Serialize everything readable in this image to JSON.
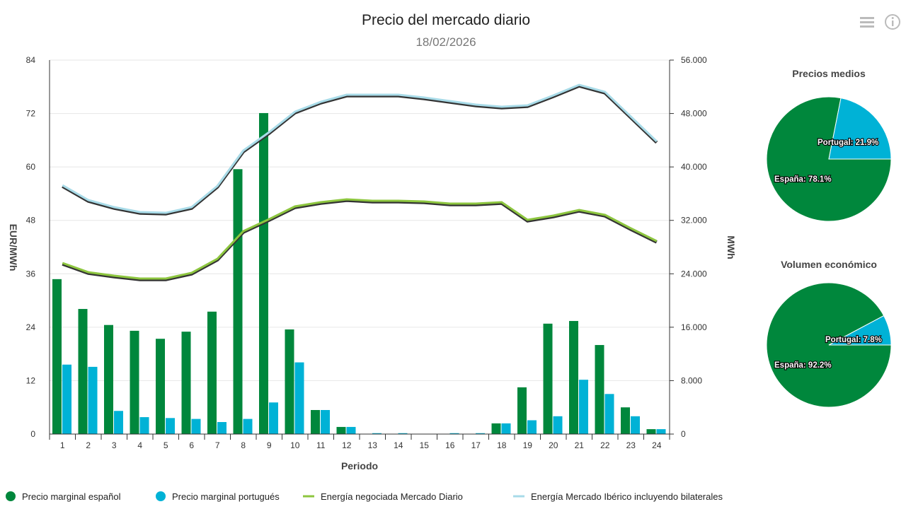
{
  "title": "Precio del mercado diario",
  "subtitle": "18/02/2026",
  "icons": [
    "menu-icon",
    "info-icon"
  ],
  "colors": {
    "spain": "#00873c",
    "portugal": "#00b2d6",
    "energia": "#8dc63f",
    "iberico": "#a8dbe8"
  },
  "chart_data": [
    {
      "type": "bar+line",
      "xlabel": "Periodo",
      "ylabel": "EUR/MWh",
      "y2label": "MWh",
      "ylim": [
        0,
        84
      ],
      "yticks": [
        "0",
        "12",
        "24",
        "36",
        "48",
        "60",
        "72",
        "84"
      ],
      "y2lim": [
        0,
        56000
      ],
      "y2ticks": [
        "0",
        "8.000",
        "16.000",
        "24.000",
        "32.000",
        "40.000",
        "48.000",
        "56.000"
      ],
      "categories": [
        "1",
        "2",
        "3",
        "4",
        "5",
        "6",
        "7",
        "8",
        "9",
        "10",
        "11",
        "12",
        "13",
        "14",
        "15",
        "16",
        "17",
        "18",
        "19",
        "20",
        "21",
        "22",
        "23",
        "24"
      ],
      "grid": true,
      "legend": "bottom",
      "series": [
        {
          "name": "Precio marginal español",
          "type": "bar",
          "axis": "left",
          "values": [
            34.8,
            28.1,
            24.5,
            23.2,
            21.4,
            23.0,
            27.5,
            59.5,
            72.1,
            23.5,
            5.4,
            1.6,
            0,
            0,
            0,
            0,
            0,
            2.4,
            10.5,
            24.8,
            25.4,
            20.0,
            6.0,
            1.1
          ]
        },
        {
          "name": "Precio marginal portugués",
          "type": "bar",
          "axis": "left",
          "values": [
            15.6,
            15.1,
            5.2,
            3.8,
            3.6,
            3.4,
            2.7,
            3.4,
            7.1,
            16.1,
            5.4,
            1.6,
            0.2,
            0.2,
            0,
            0.2,
            0.2,
            2.4,
            3.1,
            4.0,
            12.2,
            9.0,
            4.0,
            1.1
          ]
        },
        {
          "name": "Energía negociada Mercado Diario",
          "type": "line",
          "axis": "right",
          "values": [
            25620,
            24240,
            23710,
            23290,
            23290,
            24140,
            26250,
            30380,
            32180,
            34090,
            34720,
            35150,
            34930,
            34930,
            34830,
            34510,
            34510,
            34720,
            32080,
            32710,
            33560,
            32820,
            30810,
            28900
          ]
        },
        {
          "name": "Energía Mercado Ibérico incluyendo bilaterales",
          "type": "line",
          "axis": "right",
          "values": [
            37260,
            35040,
            33980,
            33240,
            33130,
            33980,
            37160,
            42450,
            45200,
            48270,
            49750,
            50810,
            50810,
            50810,
            50390,
            49860,
            49330,
            49010,
            49220,
            50710,
            52290,
            51240,
            47530,
            43830
          ]
        }
      ]
    },
    {
      "type": "pie",
      "title": "Precios medios",
      "slices": [
        {
          "label": "España: 78.1%",
          "value": 78.1
        },
        {
          "label": "Portugal: 21.9%",
          "value": 21.9
        }
      ]
    },
    {
      "type": "pie",
      "title": "Volumen económico",
      "slices": [
        {
          "label": "España: 92.2%",
          "value": 92.2
        },
        {
          "label": "Portugal: 7.8%",
          "value": 7.8
        }
      ]
    }
  ]
}
